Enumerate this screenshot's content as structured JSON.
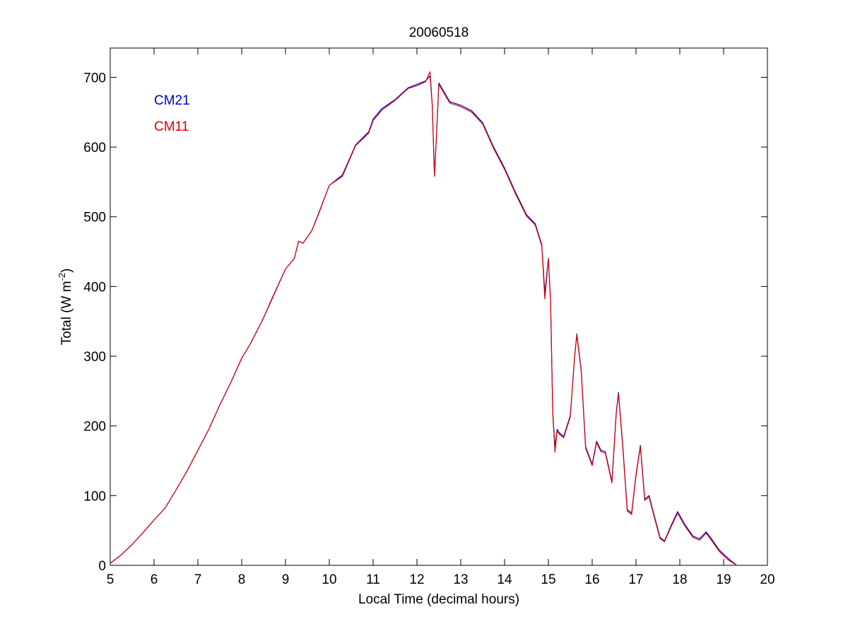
{
  "chart_data": {
    "type": "line",
    "title": "20060518",
    "xlabel": "Local Time (decimal hours)",
    "ylabel_main": "Total (W m",
    "ylabel_sup": "-2",
    "ylabel_close": ")",
    "xlim": [
      5,
      20
    ],
    "ylim": [
      0,
      742
    ],
    "xticks": [
      5,
      6,
      7,
      8,
      9,
      10,
      11,
      12,
      13,
      14,
      15,
      16,
      17,
      18,
      19,
      20
    ],
    "yticks": [
      0,
      100,
      200,
      300,
      400,
      500,
      600,
      700
    ],
    "grid": false,
    "legend_placement": "top-left",
    "series": [
      {
        "name": "CM21",
        "color": "#0000c8",
        "x": [
          5.0,
          5.25,
          5.5,
          5.75,
          6.0,
          6.25,
          6.5,
          6.75,
          7.0,
          7.25,
          7.5,
          7.75,
          8.0,
          8.2,
          8.5,
          8.7,
          9.0,
          9.2,
          9.3,
          9.4,
          9.6,
          9.75,
          10.0,
          10.3,
          10.6,
          10.9,
          11.0,
          11.2,
          11.5,
          11.8,
          12.0,
          12.2,
          12.3,
          12.35,
          12.4,
          12.45,
          12.5,
          12.75,
          13.0,
          13.25,
          13.5,
          13.75,
          14.0,
          14.25,
          14.5,
          14.7,
          14.85,
          14.92,
          15.0,
          15.05,
          15.1,
          15.15,
          15.2,
          15.25,
          15.35,
          15.5,
          15.6,
          15.65,
          15.75,
          15.85,
          16.0,
          16.1,
          16.2,
          16.3,
          16.45,
          16.55,
          16.6,
          16.7,
          16.8,
          16.9,
          17.0,
          17.1,
          17.2,
          17.3,
          17.4,
          17.55,
          17.65,
          17.8,
          17.95,
          18.1,
          18.3,
          18.45,
          18.6,
          18.7,
          18.9,
          19.1,
          19.2,
          19.3
        ],
        "y": [
          3,
          15,
          30,
          47,
          65,
          82,
          108,
          135,
          165,
          195,
          230,
          262,
          297,
          318,
          355,
          384,
          425,
          440,
          465,
          462,
          480,
          504,
          545,
          560,
          603,
          622,
          640,
          655,
          668,
          685,
          690,
          695,
          702,
          660,
          560,
          620,
          692,
          665,
          660,
          652,
          635,
          600,
          570,
          535,
          503,
          490,
          460,
          390,
          440,
          380,
          220,
          170,
          195,
          190,
          185,
          215,
          300,
          332,
          280,
          170,
          145,
          178,
          165,
          163,
          120,
          220,
          248,
          170,
          80,
          75,
          130,
          172,
          95,
          100,
          75,
          40,
          35,
          57,
          77,
          60,
          42,
          38,
          48,
          40,
          22,
          10,
          5,
          0
        ]
      },
      {
        "name": "CM11",
        "color": "#e00000",
        "x": [
          5.0,
          5.25,
          5.5,
          5.75,
          6.0,
          6.25,
          6.5,
          6.75,
          7.0,
          7.25,
          7.5,
          7.75,
          8.0,
          8.2,
          8.5,
          8.7,
          9.0,
          9.2,
          9.3,
          9.4,
          9.6,
          9.75,
          10.0,
          10.3,
          10.6,
          10.9,
          11.0,
          11.2,
          11.5,
          11.8,
          12.0,
          12.2,
          12.3,
          12.35,
          12.4,
          12.45,
          12.5,
          12.75,
          13.0,
          13.25,
          13.5,
          13.75,
          14.0,
          14.25,
          14.5,
          14.7,
          14.85,
          14.92,
          15.0,
          15.05,
          15.1,
          15.15,
          15.2,
          15.25,
          15.35,
          15.5,
          15.6,
          15.65,
          15.75,
          15.85,
          16.0,
          16.1,
          16.2,
          16.3,
          16.45,
          16.55,
          16.6,
          16.7,
          16.8,
          16.9,
          17.0,
          17.1,
          17.2,
          17.3,
          17.4,
          17.55,
          17.65,
          17.8,
          17.95,
          18.1,
          18.3,
          18.45,
          18.6,
          18.7,
          18.9,
          19.1,
          19.2,
          19.3
        ],
        "y": [
          3,
          15,
          30,
          47,
          65,
          82,
          108,
          135,
          165,
          195,
          230,
          262,
          297,
          318,
          355,
          383,
          425,
          440,
          465,
          462,
          480,
          503,
          545,
          558,
          602,
          620,
          638,
          653,
          667,
          684,
          688,
          694,
          708,
          660,
          558,
          620,
          690,
          663,
          658,
          650,
          633,
          598,
          568,
          533,
          501,
          488,
          458,
          382,
          440,
          380,
          218,
          162,
          193,
          188,
          183,
          213,
          300,
          330,
          278,
          168,
          143,
          176,
          163,
          161,
          118,
          218,
          246,
          168,
          78,
          73,
          128,
          170,
          93,
          98,
          73,
          38,
          34,
          55,
          75,
          58,
          40,
          36,
          46,
          38,
          20,
          8,
          4,
          0
        ]
      }
    ]
  }
}
